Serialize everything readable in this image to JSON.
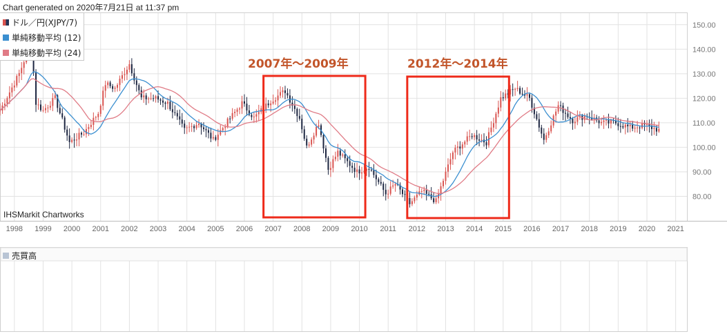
{
  "header": {
    "generated": "Chart generated on 2020年7月21日 at 11:37 pm"
  },
  "watermark": "IHSMarkit Chartworks",
  "legend": [
    {
      "label": "ドル／円(XJPY/7)",
      "color": "#d9534f",
      "color2": "#223355",
      "icon": "candlestick-icon"
    },
    {
      "label": "単純移動平均 (12)",
      "color": "#3b8fd0",
      "icon": "line-swatch-icon"
    },
    {
      "label": "単純移動平均 (24)",
      "color": "#e07b86",
      "icon": "line-swatch-icon"
    }
  ],
  "annotations": [
    {
      "label": "2007年～2009年",
      "range": [
        "2007-01",
        "2009-12"
      ]
    },
    {
      "label": "2012年～2014年",
      "range": [
        "2012-01",
        "2014-12"
      ]
    }
  ],
  "lower_panel": {
    "title": "売買高",
    "color": "#b8c4d4"
  },
  "colors": {
    "up": "#d9534f",
    "down": "#1c2540",
    "ma12": "#3b8fd0",
    "ma24": "#e07b86",
    "highlight": "#ee2a1a",
    "grid": "#e2e2e2"
  },
  "chart_data": {
    "type": "candlestick",
    "title": "",
    "instrument": "ドル／円(XJPY/7)",
    "interval": "month",
    "xlabel": "",
    "ylabel": "",
    "ylim": [
      70,
      155
    ],
    "y_ticks": [
      "150.00",
      "140.00",
      "130.00",
      "120.00",
      "110.00",
      "100.00",
      "90.00",
      "80.00"
    ],
    "x_ticks": [
      "1998",
      "1999",
      "2000",
      "2001",
      "2002",
      "2003",
      "2004",
      "2005",
      "2006",
      "2007",
      "2008",
      "2009",
      "2010",
      "2011",
      "2012",
      "2013",
      "2014",
      "2015",
      "2016",
      "2017",
      "2018",
      "2019",
      "2020",
      "2021"
    ],
    "x_range": [
      "1997-07",
      "2021-06"
    ],
    "close_anchors": [
      [
        "1997-07",
        115
      ],
      [
        "1998-03",
        130
      ],
      [
        "1998-08",
        143
      ],
      [
        "1998-10",
        118
      ],
      [
        "1999-01",
        115
      ],
      [
        "1999-06",
        120
      ],
      [
        "1999-12",
        102
      ],
      [
        "2000-06",
        106
      ],
      [
        "2000-12",
        114
      ],
      [
        "2001-03",
        126
      ],
      [
        "2001-07",
        124
      ],
      [
        "2002-01",
        134
      ],
      [
        "2002-06",
        120
      ],
      [
        "2002-12",
        120
      ],
      [
        "2003-05",
        118
      ],
      [
        "2003-12",
        107
      ],
      [
        "2004-06",
        110
      ],
      [
        "2004-12",
        103
      ],
      [
        "2005-12",
        118
      ],
      [
        "2006-05",
        112
      ],
      [
        "2006-12",
        119
      ],
      [
        "2007-06",
        123
      ],
      [
        "2007-12",
        112
      ],
      [
        "2008-03",
        100
      ],
      [
        "2008-08",
        110
      ],
      [
        "2008-12",
        91
      ],
      [
        "2009-04",
        98
      ],
      [
        "2009-12",
        90
      ],
      [
        "2010-05",
        92
      ],
      [
        "2010-12",
        81
      ],
      [
        "2011-04",
        85
      ],
      [
        "2011-10",
        77
      ],
      [
        "2012-03",
        82
      ],
      [
        "2012-09",
        78
      ],
      [
        "2013-04",
        98
      ],
      [
        "2013-12",
        105
      ],
      [
        "2014-06",
        102
      ],
      [
        "2014-12",
        120
      ],
      [
        "2015-06",
        124
      ],
      [
        "2015-12",
        120
      ],
      [
        "2016-06",
        103
      ],
      [
        "2016-12",
        117
      ],
      [
        "2017-06",
        111
      ],
      [
        "2017-12",
        113
      ],
      [
        "2018-06",
        110
      ],
      [
        "2018-12",
        110
      ],
      [
        "2019-06",
        108
      ],
      [
        "2019-12",
        109
      ],
      [
        "2020-03",
        108
      ],
      [
        "2020-06",
        107
      ]
    ],
    "series": [
      {
        "name": "単純移動平均 (12)",
        "window": 12
      },
      {
        "name": "単純移動平均 (24)",
        "window": 24
      }
    ],
    "lower_panel": {
      "name": "売買高",
      "values": []
    }
  }
}
